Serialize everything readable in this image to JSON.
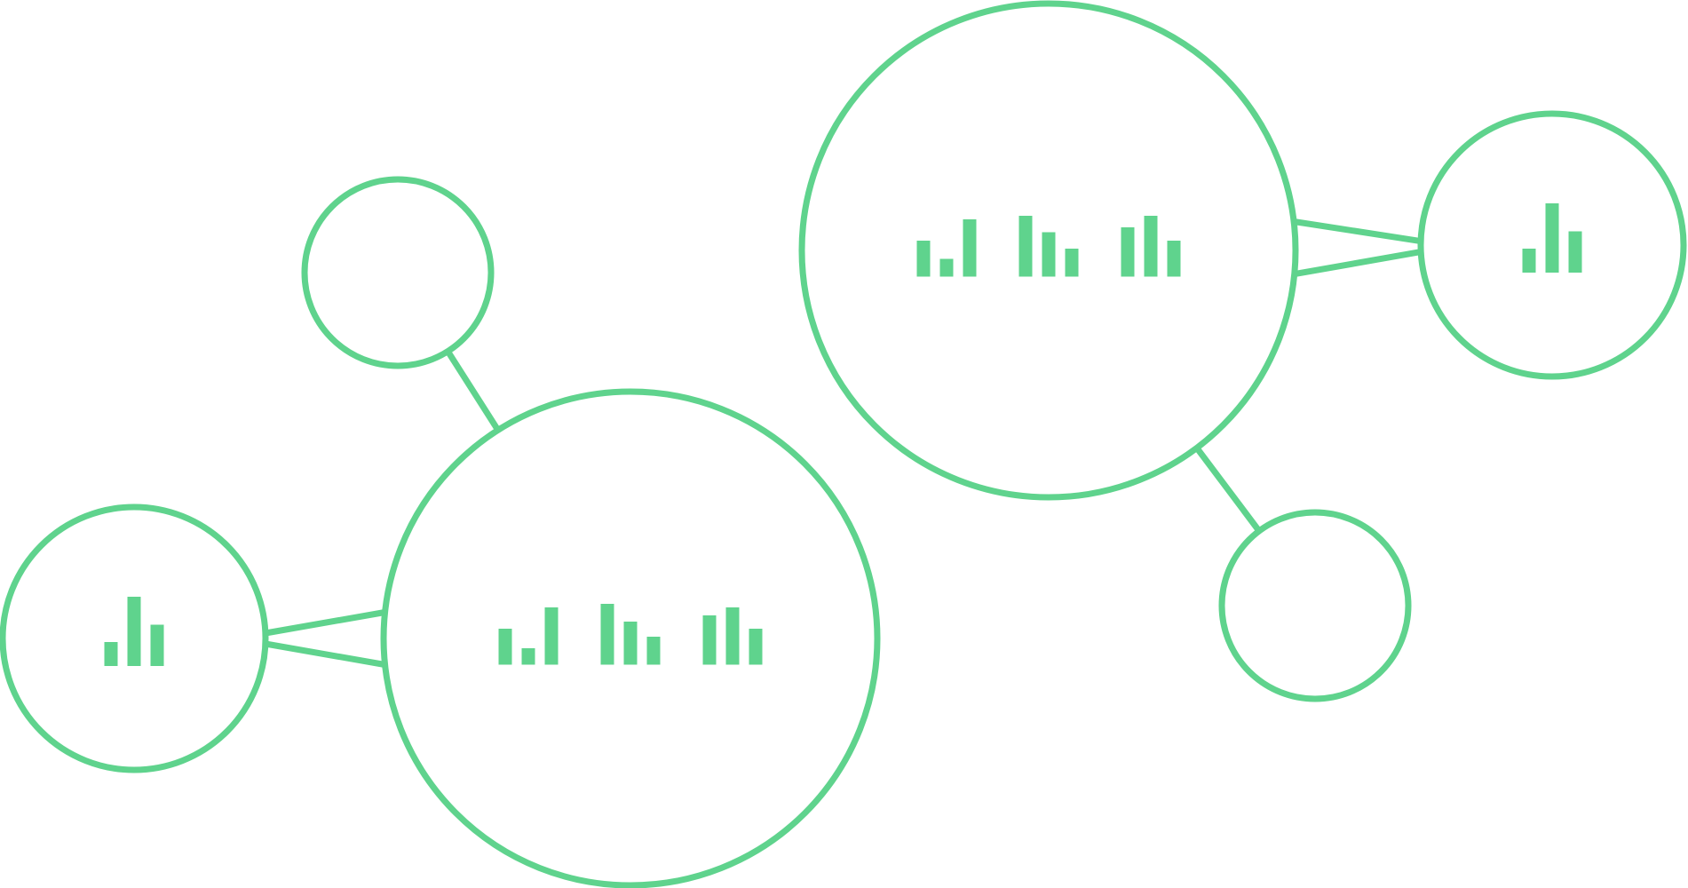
{
  "diagram": {
    "accent_color": "#5fd38d",
    "background_color": "#ffffff",
    "nodes": [
      {
        "id": "small-circle-top-left",
        "size": "small",
        "bars": []
      },
      {
        "id": "medium-circle-left",
        "size": "medium",
        "bars": [
          [
            0.35,
            1.0,
            0.6
          ]
        ]
      },
      {
        "id": "large-circle-bottom-center",
        "size": "large",
        "bars": [
          [
            0.55,
            0.25,
            0.87
          ],
          [
            0.93,
            0.66,
            0.43
          ],
          [
            0.75,
            0.87,
            0.55
          ]
        ]
      },
      {
        "id": "large-circle-top-center",
        "size": "large",
        "bars": [
          [
            0.55,
            0.27,
            0.87
          ],
          [
            0.93,
            0.68,
            0.43
          ],
          [
            0.75,
            0.93,
            0.55
          ]
        ]
      },
      {
        "id": "medium-circle-right",
        "size": "medium",
        "bars": [
          [
            0.35,
            1.0,
            0.6
          ]
        ]
      },
      {
        "id": "small-circle-bottom-right",
        "size": "small",
        "bars": []
      }
    ],
    "edges": [
      {
        "from": "small-circle-top-left",
        "to": "large-circle-bottom-center",
        "style": "single"
      },
      {
        "from": "medium-circle-left",
        "to": "large-circle-bottom-center",
        "style": "double"
      },
      {
        "from": "large-circle-top-center",
        "to": "medium-circle-right",
        "style": "double"
      },
      {
        "from": "large-circle-top-center",
        "to": "small-circle-bottom-right",
        "style": "single"
      }
    ]
  }
}
